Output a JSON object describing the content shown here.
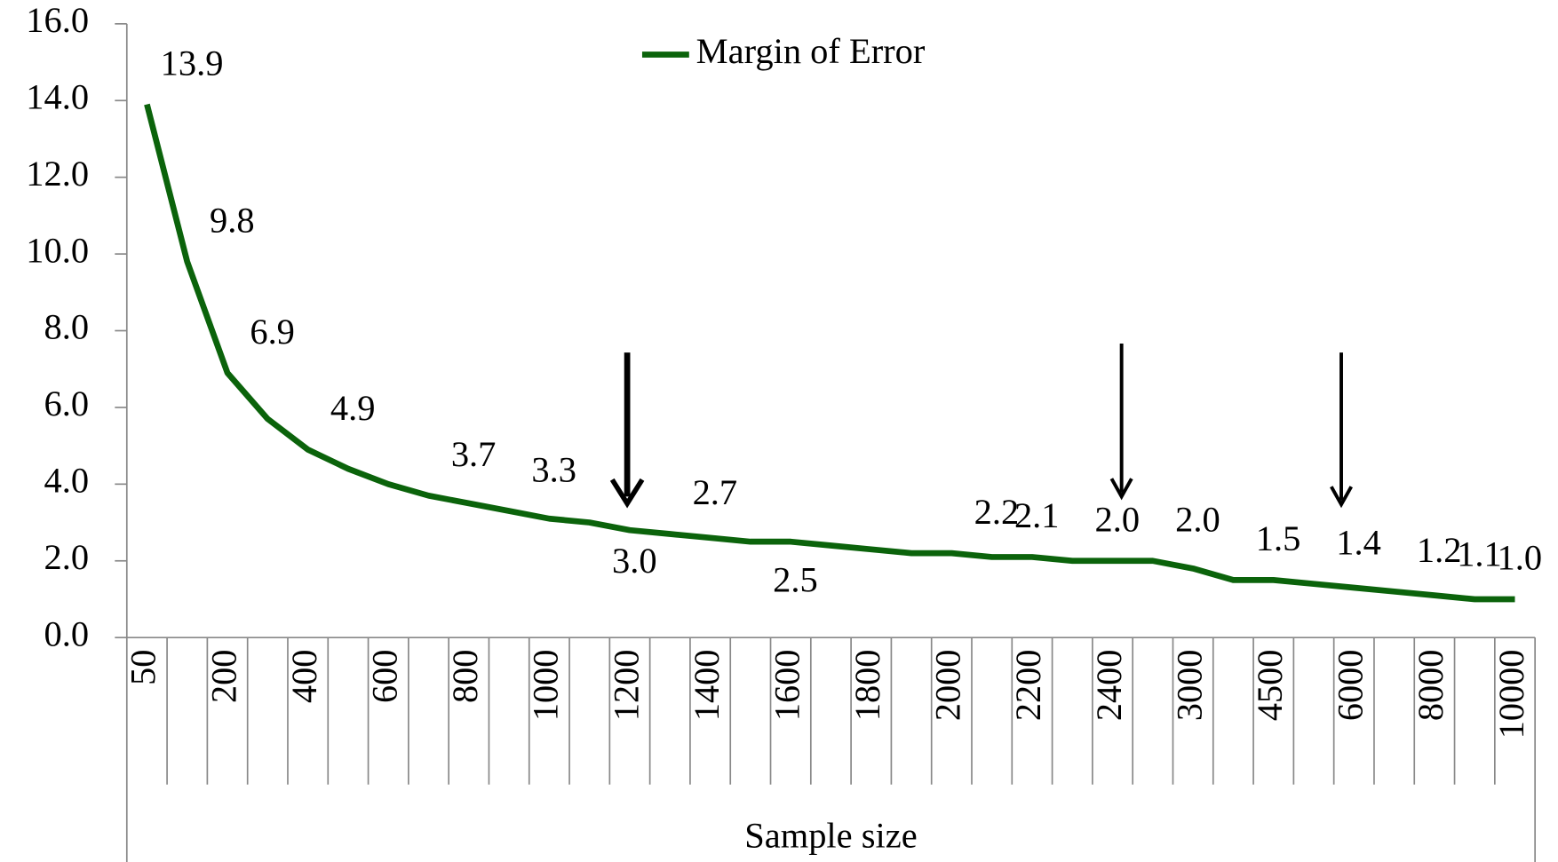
{
  "chart_data": {
    "type": "line",
    "x_label": "Sample size",
    "categories": [
      "50",
      null,
      "200",
      null,
      "400",
      null,
      "600",
      null,
      "800",
      null,
      "1000",
      null,
      "1200",
      null,
      "1400",
      null,
      "1600",
      null,
      "1800",
      null,
      "2000",
      null,
      "2200",
      null,
      "2400",
      null,
      "3000",
      null,
      "4500",
      null,
      "6000",
      null,
      "8000",
      null,
      "10000"
    ],
    "series": [
      {
        "name": "Margin of Error",
        "color": "#0b630b",
        "values": [
          13.9,
          9.8,
          6.9,
          5.7,
          4.9,
          4.4,
          4.0,
          3.7,
          3.5,
          3.3,
          3.1,
          3.0,
          2.8,
          2.7,
          2.6,
          2.5,
          2.5,
          2.4,
          2.3,
          2.2,
          2.2,
          2.1,
          2.1,
          2.0,
          2.0,
          2.0,
          1.8,
          1.5,
          1.5,
          1.4,
          1.3,
          1.2,
          1.1,
          1.0,
          1.0
        ],
        "value_labels": [
          "13.9",
          "9.8",
          "6.9",
          null,
          "4.9",
          null,
          null,
          "3.7",
          null,
          "3.3",
          null,
          "3.0",
          null,
          "2.7",
          null,
          "2.5",
          null,
          null,
          null,
          null,
          "2.2",
          "2.1",
          null,
          "2.0",
          null,
          "2.0",
          null,
          "1.5",
          null,
          "1.4",
          null,
          "1.2",
          "1.1",
          "1.0",
          null
        ]
      }
    ],
    "ylim": [
      0,
      16
    ],
    "yticks": [
      {
        "value": 0,
        "label": "0.0"
      },
      {
        "value": 2,
        "label": "2.0"
      },
      {
        "value": 4,
        "label": "4.0"
      },
      {
        "value": 6,
        "label": "6.0"
      },
      {
        "value": 8,
        "label": "8.0"
      },
      {
        "value": 10,
        "label": "10.0"
      },
      {
        "value": 12,
        "label": "12.0"
      },
      {
        "value": 14,
        "label": "14.0"
      },
      {
        "value": 16,
        "label": "16.0"
      }
    ],
    "legend": "top"
  }
}
